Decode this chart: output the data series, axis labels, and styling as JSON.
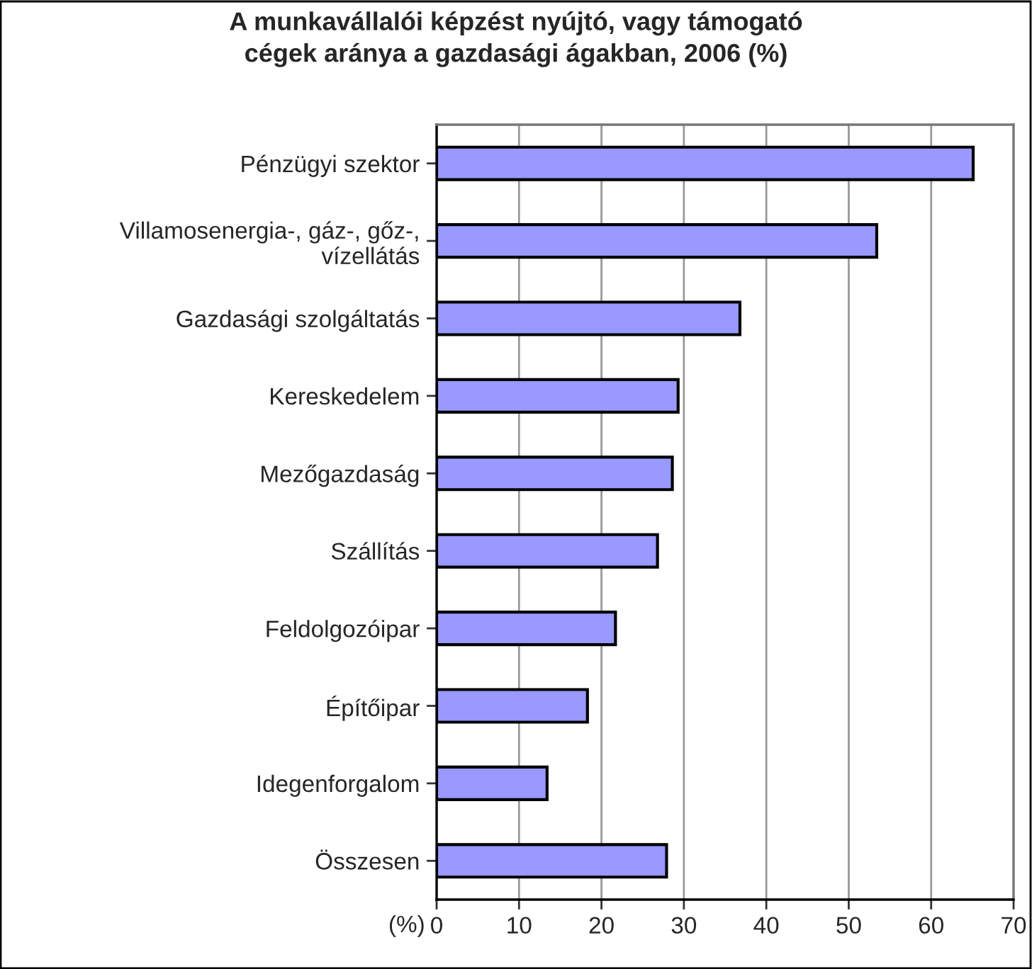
{
  "chart_data": {
    "type": "bar",
    "orientation": "horizontal",
    "title": "A munkavállalói képzést nyújtó, vagy támogató\ncégek aránya a gazdasági ágakban, 2006 (%)",
    "xlabel": "(%)",
    "categories": [
      "Pénzügyi szektor",
      "Villamosenergia-, gáz-, gőz-,\nvízellátás",
      "Gazdasági szolgáltatás",
      "Kereskedelem",
      "Mezőgazdaság",
      "Szállítás",
      "Feldolgozóipar",
      "Építőipar",
      "Idegenforgalom",
      "Összesen"
    ],
    "values": [
      65.1,
      53.4,
      36.8,
      29.3,
      28.6,
      26.8,
      21.7,
      18.3,
      13.4,
      27.9
    ],
    "color": "#9999ff",
    "xlim": [
      0,
      70
    ],
    "xticks": [
      0,
      10,
      20,
      30,
      40,
      50,
      60,
      70
    ],
    "grid": "x"
  }
}
